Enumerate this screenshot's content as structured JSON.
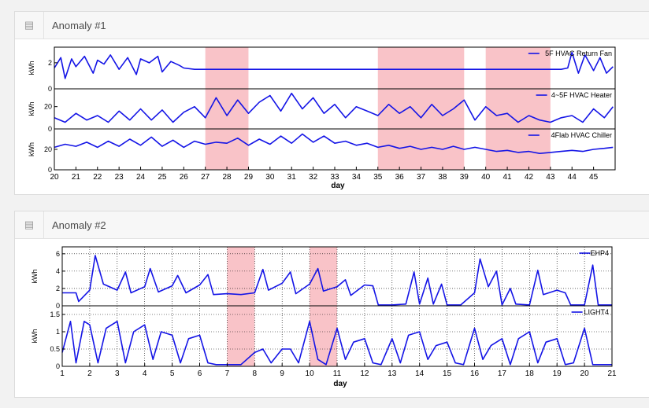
{
  "panels": [
    {
      "title": "Anomaly #1",
      "icon": "list-icon"
    },
    {
      "title": "Anomaly #2",
      "icon": "list-icon"
    }
  ],
  "colors": {
    "line": "#1414e6",
    "highlight": "#f9c3c8",
    "frame": "#000000"
  },
  "chart_data": [
    {
      "type": "line",
      "xlabel": "day",
      "xlim": [
        20,
        46
      ],
      "xticks": [
        20,
        21,
        22,
        23,
        24,
        25,
        26,
        27,
        28,
        29,
        30,
        31,
        32,
        33,
        34,
        35,
        36,
        37,
        38,
        39,
        40,
        41,
        42,
        43,
        44,
        45
      ],
      "highlights": [
        [
          27,
          29
        ],
        [
          35,
          39
        ],
        [
          40,
          43
        ]
      ],
      "subplots": [
        {
          "ylabel": "kWh",
          "yticks": [
            0,
            2
          ],
          "ylim": [
            0,
            3.2
          ],
          "grid": false,
          "series": [
            {
              "name": "5F HVAC Return Fan",
              "legend": "top-right",
              "x": [
                20,
                20.3,
                20.5,
                20.8,
                21,
                21.4,
                21.8,
                22,
                22.3,
                22.6,
                23,
                23.4,
                23.8,
                24,
                24.4,
                24.8,
                25,
                25.4,
                25.8,
                26,
                26.5,
                27,
                28,
                29,
                30,
                31,
                32,
                33,
                34,
                35,
                36,
                37,
                38,
                39,
                40,
                41,
                42,
                43,
                43.5,
                43.8,
                44,
                44.3,
                44.6,
                45,
                45.3,
                45.6,
                45.9
              ],
              "y": [
                1.6,
                2.4,
                0.8,
                2.3,
                1.7,
                2.5,
                1.2,
                2.2,
                1.9,
                2.6,
                1.5,
                2.4,
                1.1,
                2.3,
                2.0,
                2.5,
                1.3,
                2.1,
                1.8,
                1.6,
                1.5,
                1.5,
                1.5,
                1.5,
                1.5,
                1.5,
                1.5,
                1.5,
                1.5,
                1.5,
                1.5,
                1.5,
                1.5,
                1.5,
                1.5,
                1.5,
                1.5,
                1.5,
                1.5,
                1.6,
                2.8,
                1.2,
                2.6,
                1.4,
                2.4,
                1.2,
                1.7
              ]
            }
          ]
        },
        {
          "ylabel": "kWh",
          "yticks": [
            0,
            20
          ],
          "ylim": [
            0,
            36
          ],
          "grid": false,
          "series": [
            {
              "name": "4~5F HVAC Heater",
              "legend": "top-right",
              "x": [
                20,
                20.5,
                21,
                21.5,
                22,
                22.5,
                23,
                23.5,
                24,
                24.5,
                25,
                25.5,
                26,
                26.5,
                27,
                27.5,
                28,
                28.5,
                29,
                29.5,
                30,
                30.5,
                31,
                31.5,
                32,
                32.5,
                33,
                33.5,
                34,
                34.5,
                35,
                35.5,
                36,
                36.5,
                37,
                37.5,
                38,
                38.5,
                39,
                39.5,
                40,
                40.5,
                41,
                41.5,
                42,
                42.5,
                43,
                43.5,
                44,
                44.5,
                45,
                45.5,
                45.9
              ],
              "y": [
                10,
                6,
                14,
                8,
                12,
                6,
                16,
                8,
                18,
                8,
                17,
                6,
                15,
                20,
                10,
                28,
                12,
                26,
                14,
                24,
                30,
                16,
                32,
                18,
                28,
                14,
                22,
                10,
                20,
                16,
                12,
                22,
                14,
                20,
                10,
                22,
                12,
                18,
                26,
                8,
                20,
                12,
                14,
                6,
                12,
                8,
                6,
                10,
                12,
                6,
                18,
                10,
                20
              ]
            }
          ]
        },
        {
          "ylabel": "kWh",
          "yticks": [
            0,
            20
          ],
          "ylim": [
            0,
            40
          ],
          "grid": false,
          "series": [
            {
              "name": "4Flab HVAC Chiller",
              "legend": "top-right",
              "x": [
                20,
                20.5,
                21,
                21.5,
                22,
                22.5,
                23,
                23.5,
                24,
                24.5,
                25,
                25.5,
                26,
                26.5,
                27,
                27.5,
                28,
                28.5,
                29,
                29.5,
                30,
                30.5,
                31,
                31.5,
                32,
                32.5,
                33,
                33.5,
                34,
                34.5,
                35,
                35.5,
                36,
                36.5,
                37,
                37.5,
                38,
                38.5,
                39,
                39.5,
                40,
                40.5,
                41,
                41.5,
                42,
                42.5,
                43,
                43.5,
                44,
                44.5,
                45,
                45.5,
                45.9
              ],
              "y": [
                22,
                25,
                23,
                27,
                22,
                28,
                23,
                30,
                24,
                32,
                23,
                29,
                22,
                28,
                25,
                27,
                26,
                31,
                24,
                30,
                25,
                33,
                26,
                35,
                27,
                33,
                26,
                28,
                24,
                26,
                22,
                24,
                21,
                23,
                20,
                22,
                20,
                23,
                20,
                22,
                20,
                18,
                19,
                17,
                18,
                16,
                17,
                18,
                19,
                18,
                20,
                21,
                22
              ]
            }
          ]
        }
      ]
    },
    {
      "type": "line",
      "xlabel": "day",
      "xlim": [
        1,
        21
      ],
      "xticks": [
        1,
        2,
        3,
        4,
        5,
        6,
        7,
        8,
        9,
        10,
        11,
        12,
        13,
        14,
        15,
        16,
        17,
        18,
        19,
        20,
        21
      ],
      "highlights": [
        [
          7,
          8
        ],
        [
          10,
          11
        ]
      ],
      "subplots": [
        {
          "ylabel": "kWh",
          "yticks": [
            0,
            2,
            4,
            6
          ],
          "ylim": [
            0,
            6.8
          ],
          "grid": true,
          "series": [
            {
              "name": "EHP4",
              "legend": "top-right",
              "x": [
                1,
                1.5,
                1.6,
                2,
                2.2,
                2.5,
                3,
                3.3,
                3.5,
                4,
                4.2,
                4.5,
                5,
                5.2,
                5.5,
                6,
                6.3,
                6.5,
                7,
                7.5,
                8,
                8.3,
                8.5,
                9,
                9.3,
                9.5,
                10,
                10.3,
                10.5,
                11,
                11.3,
                11.5,
                12,
                12.3,
                12.5,
                13,
                13.5,
                13.8,
                14,
                14.3,
                14.5,
                14.8,
                15,
                15.5,
                16,
                16.2,
                16.5,
                16.8,
                17,
                17.3,
                17.5,
                18,
                18.3,
                18.5,
                19,
                19.3,
                19.5,
                20,
                20.3,
                20.5,
                21
              ],
              "y": [
                1.5,
                1.5,
                0.5,
                1.8,
                5.8,
                2.5,
                1.8,
                3.9,
                1.5,
                2.2,
                4.3,
                1.6,
                2.3,
                3.5,
                1.5,
                2.4,
                3.6,
                1.3,
                1.4,
                1.3,
                1.5,
                4.2,
                1.8,
                2.6,
                3.9,
                1.4,
                2.5,
                4.3,
                1.7,
                2.2,
                3.0,
                1.2,
                2.4,
                2.3,
                0.1,
                0.1,
                0.2,
                3.9,
                0.2,
                3.2,
                0.2,
                2.5,
                0.1,
                0.1,
                1.5,
                5.4,
                2.2,
                4.0,
                0.1,
                2.0,
                0.2,
                0.1,
                4.1,
                1.3,
                1.8,
                1.5,
                0.1,
                0.1,
                4.7,
                0.1,
                0.1
              ]
            }
          ]
        },
        {
          "ylabel": "kWh",
          "yticks": [
            0,
            0.5,
            1,
            1.5
          ],
          "ylim": [
            0,
            1.75
          ],
          "grid": true,
          "series": [
            {
              "name": "LIGHT4",
              "legend": "top-right",
              "x": [
                1,
                1.3,
                1.5,
                1.8,
                2,
                2.3,
                2.6,
                3,
                3.3,
                3.6,
                4,
                4.3,
                4.6,
                5,
                5.3,
                5.6,
                6,
                6.3,
                6.6,
                7,
                7.5,
                8,
                8.3,
                8.6,
                9,
                9.3,
                9.6,
                10,
                10.3,
                10.6,
                11,
                11.3,
                11.6,
                12,
                12.3,
                12.6,
                13,
                13.3,
                13.6,
                14,
                14.3,
                14.6,
                15,
                15.3,
                15.6,
                16,
                16.3,
                16.6,
                17,
                17.3,
                17.6,
                18,
                18.3,
                18.6,
                19,
                19.3,
                19.6,
                20,
                20.3,
                20.6,
                21
              ],
              "y": [
                0.4,
                1.3,
                0.1,
                1.3,
                1.2,
                0.1,
                1.1,
                1.3,
                0.1,
                1.0,
                1.2,
                0.2,
                1.0,
                0.9,
                0.1,
                0.8,
                0.9,
                0.1,
                0.05,
                0.05,
                0.05,
                0.4,
                0.5,
                0.1,
                0.5,
                0.5,
                0.1,
                1.3,
                0.2,
                0.05,
                1.1,
                0.2,
                0.7,
                0.8,
                0.1,
                0.05,
                0.8,
                0.1,
                0.9,
                1.0,
                0.2,
                0.6,
                0.7,
                0.1,
                0.05,
                1.1,
                0.2,
                0.6,
                0.8,
                0.05,
                0.8,
                1.0,
                0.1,
                0.7,
                0.8,
                0.05,
                0.1,
                1.1,
                0.05,
                0.05,
                0.05
              ]
            }
          ]
        }
      ]
    }
  ]
}
